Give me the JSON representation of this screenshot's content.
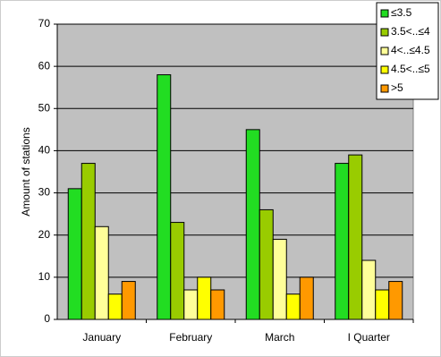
{
  "chart_data": {
    "type": "bar",
    "y_label": "Amount of stations",
    "categories": [
      "January",
      "February",
      "March",
      "I Quarter"
    ],
    "series": [
      {
        "name": "≤3.5",
        "color": "#22dd22",
        "values": [
          31,
          58,
          45,
          37
        ]
      },
      {
        "name": "3.5<..≤4",
        "color": "#99cc00",
        "values": [
          37,
          23,
          26,
          39
        ]
      },
      {
        "name": "4<..≤4.5",
        "color": "#ffff99",
        "values": [
          22,
          7,
          19,
          14
        ]
      },
      {
        "name": "4.5<..≤5",
        "color": "#ffff00",
        "values": [
          6,
          10,
          6,
          7
        ]
      },
      {
        "name": ">5",
        "color": "#ff9900",
        "values": [
          9,
          7,
          10,
          9
        ]
      }
    ],
    "ylim": [
      0,
      70
    ],
    "yticks": [
      0,
      10,
      20,
      30,
      40,
      50,
      60,
      70
    ],
    "grid": true,
    "legend": "top-right"
  }
}
